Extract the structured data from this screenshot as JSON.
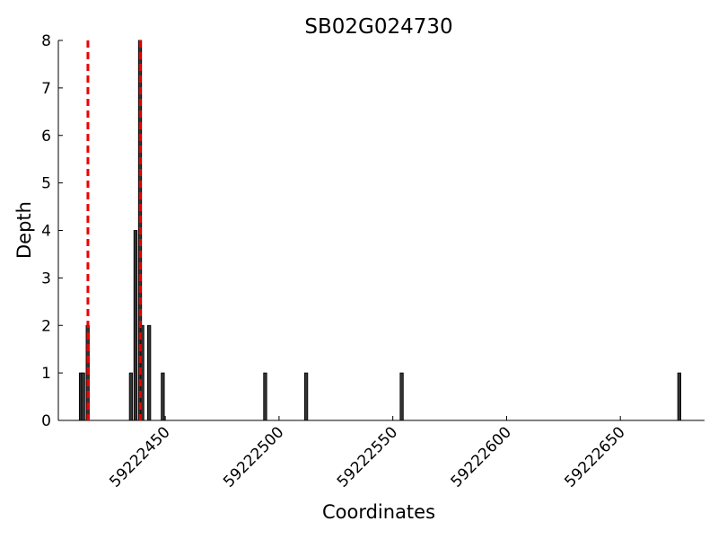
{
  "chart_data": {
    "type": "bar",
    "title": "SB02G024730",
    "xlabel": "Coordinates",
    "ylabel": "Depth",
    "x": [
      59222413,
      59222414,
      59222416,
      59222435,
      59222437,
      59222439,
      59222440,
      59222443,
      59222449,
      59222494,
      59222512,
      59222554,
      59222676
    ],
    "values": [
      1,
      1,
      2,
      1,
      4,
      8,
      2,
      2,
      1,
      1,
      1,
      1,
      1
    ],
    "color": "#333333",
    "xlim": [
      59222403,
      59222687
    ],
    "xticks": [
      59222450,
      59222500,
      59222550,
      59222600,
      59222650
    ],
    "ylim": [
      0,
      8
    ],
    "yticks": [
      0,
      1,
      2,
      3,
      4,
      5,
      6,
      7,
      8
    ],
    "vlines": {
      "x": [
        59222416,
        59222439
      ],
      "color": "#ee0000"
    }
  }
}
